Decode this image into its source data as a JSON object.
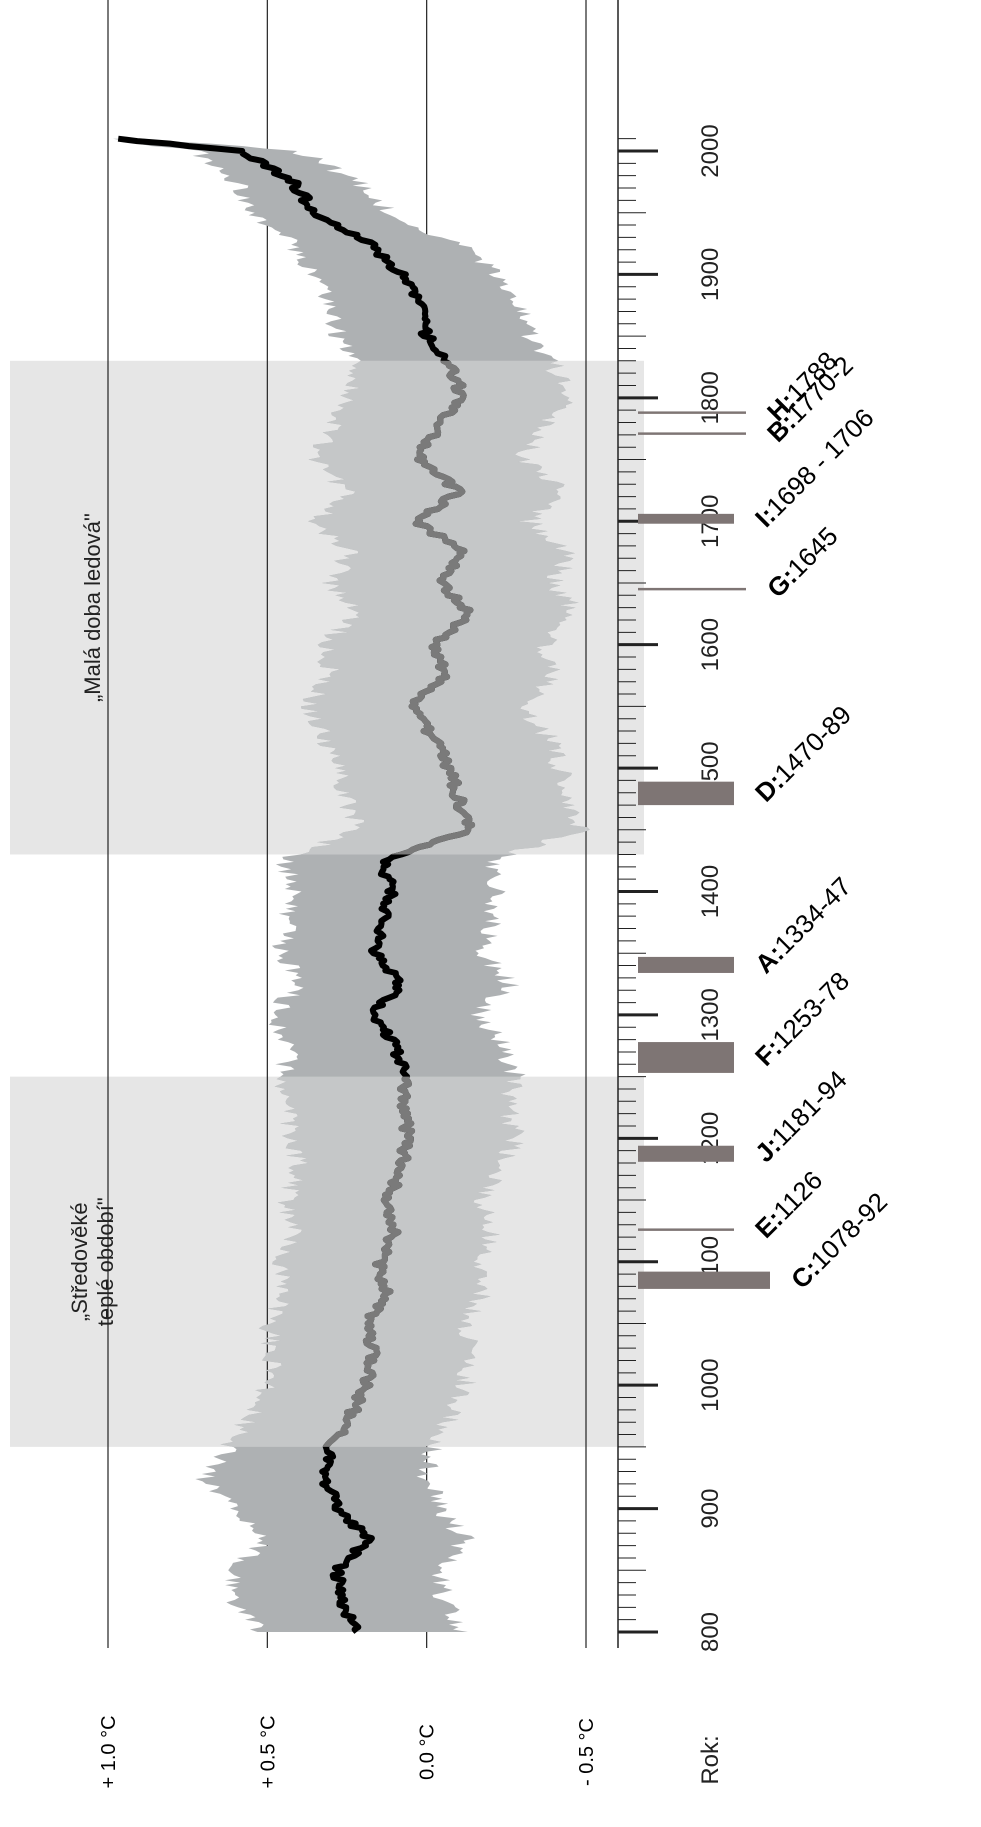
{
  "chart_data": {
    "type": "area",
    "orientation": "rotated-90-ccw",
    "y_axis_labels": [
      "+ 1.0 °C",
      "+ 0.5 °C",
      "0.0 °C",
      "- 0.5 °C"
    ],
    "y_values": [
      1.0,
      0.5,
      0.0,
      -0.5
    ],
    "x_axis_label": "Rok:",
    "x_ticks": [
      800,
      900,
      1000,
      1100,
      1200,
      1300,
      1400,
      1500,
      1600,
      1700,
      1800,
      1900,
      2000
    ],
    "xlim": [
      790,
      2015
    ],
    "ylim": [
      -0.62,
      1.15
    ],
    "periods": [
      {
        "label_lines": [
          "„Středověké",
          "teplé období\""
        ],
        "start": 950,
        "end": 1250
      },
      {
        "label_lines": [
          "„Malá doba ledová\""
        ],
        "start": 1430,
        "end": 1830
      }
    ],
    "events": [
      {
        "code": "H:",
        "range": "1788",
        "start": 1787,
        "end": 1789,
        "bar_length": 0.45
      },
      {
        "code": "B:",
        "range": "1770-2",
        "start": 1770,
        "end": 1772,
        "bar_length": 0.45
      },
      {
        "code": "I:",
        "range": "1698 - 1706",
        "start": 1698,
        "end": 1706,
        "bar_length": 0.4
      },
      {
        "code": "G:",
        "range": "1645",
        "start": 1644,
        "end": 1646,
        "bar_length": 0.45
      },
      {
        "code": "D:",
        "range": "1470-89",
        "start": 1470,
        "end": 1489,
        "bar_length": 0.4
      },
      {
        "code": "A:",
        "range": "1334-47",
        "start": 1334,
        "end": 1347,
        "bar_length": 0.4
      },
      {
        "code": "F:",
        "range": "1253-78",
        "start": 1253,
        "end": 1278,
        "bar_length": 0.4
      },
      {
        "code": "J:",
        "range": "1181-94",
        "start": 1181,
        "end": 1194,
        "bar_length": 0.4
      },
      {
        "code": "E:",
        "range": "1126",
        "start": 1125,
        "end": 1127,
        "bar_length": 0.4
      },
      {
        "code": "C:",
        "range": "1078-92",
        "start": 1078,
        "end": 1092,
        "bar_length": 0.55
      }
    ],
    "series": [
      {
        "kind": "mean",
        "color": "#000000",
        "x": [
          800,
          825,
          850,
          875,
          900,
          925,
          950,
          975,
          1000,
          1025,
          1050,
          1075,
          1100,
          1125,
          1150,
          1175,
          1200,
          1225,
          1250,
          1275,
          1300,
          1325,
          1350,
          1375,
          1400,
          1425,
          1450,
          1475,
          1500,
          1525,
          1550,
          1575,
          1600,
          1625,
          1650,
          1675,
          1700,
          1725,
          1750,
          1775,
          1800,
          1825,
          1850,
          1875,
          1900,
          1925,
          1950,
          1975,
          2000,
          2010
        ],
        "y": [
          0.22,
          0.27,
          0.28,
          0.18,
          0.28,
          0.32,
          0.3,
          0.24,
          0.19,
          0.17,
          0.19,
          0.13,
          0.15,
          0.1,
          0.12,
          0.08,
          0.06,
          0.07,
          0.07,
          0.1,
          0.17,
          0.08,
          0.16,
          0.14,
          0.11,
          0.14,
          -0.13,
          -0.1,
          -0.07,
          -0.02,
          0.05,
          -0.06,
          -0.02,
          -0.13,
          -0.05,
          -0.11,
          0.03,
          -0.1,
          0.03,
          -0.03,
          -0.11,
          -0.08,
          0.0,
          0.02,
          0.08,
          0.18,
          0.35,
          0.42,
          0.58,
          0.98
        ]
      },
      {
        "kind": "uncertainty",
        "fill": "#aeb1b3",
        "x": [
          800,
          825,
          850,
          875,
          900,
          925,
          950,
          975,
          1000,
          1025,
          1050,
          1075,
          1100,
          1125,
          1150,
          1175,
          1200,
          1225,
          1250,
          1275,
          1300,
          1325,
          1350,
          1375,
          1400,
          1425,
          1450,
          1475,
          1500,
          1525,
          1550,
          1575,
          1600,
          1625,
          1650,
          1675,
          1700,
          1725,
          1750,
          1775,
          1800,
          1825,
          1850,
          1875,
          1900,
          1925,
          1950,
          1975,
          2000,
          2010
        ],
        "upper": [
          0.52,
          0.6,
          0.62,
          0.5,
          0.6,
          0.7,
          0.62,
          0.55,
          0.5,
          0.48,
          0.5,
          0.44,
          0.46,
          0.42,
          0.44,
          0.4,
          0.42,
          0.44,
          0.45,
          0.43,
          0.48,
          0.4,
          0.46,
          0.44,
          0.42,
          0.45,
          0.22,
          0.25,
          0.28,
          0.32,
          0.38,
          0.3,
          0.32,
          0.22,
          0.3,
          0.24,
          0.35,
          0.25,
          0.35,
          0.3,
          0.24,
          0.22,
          0.28,
          0.3,
          0.35,
          0.42,
          0.55,
          0.6,
          0.72,
          1.0
        ],
        "lower": [
          -0.12,
          -0.05,
          -0.04,
          -0.12,
          -0.04,
          0.0,
          -0.02,
          -0.08,
          -0.12,
          -0.14,
          -0.12,
          -0.18,
          -0.16,
          -0.2,
          -0.18,
          -0.23,
          -0.28,
          -0.25,
          -0.28,
          -0.24,
          -0.16,
          -0.26,
          -0.18,
          -0.2,
          -0.22,
          -0.2,
          -0.48,
          -0.45,
          -0.42,
          -0.38,
          -0.3,
          -0.4,
          -0.36,
          -0.47,
          -0.4,
          -0.45,
          -0.32,
          -0.44,
          -0.3,
          -0.36,
          -0.45,
          -0.4,
          -0.32,
          -0.3,
          -0.22,
          -0.1,
          0.12,
          0.22,
          0.4,
          0.9
        ]
      }
    ],
    "colors": {
      "period_shade": "#e6e6e6",
      "band_in_period": "#c5c7c8",
      "mean_in_period": "#7a7a7a",
      "event_bar": "#7e7574"
    },
    "grid": true
  }
}
